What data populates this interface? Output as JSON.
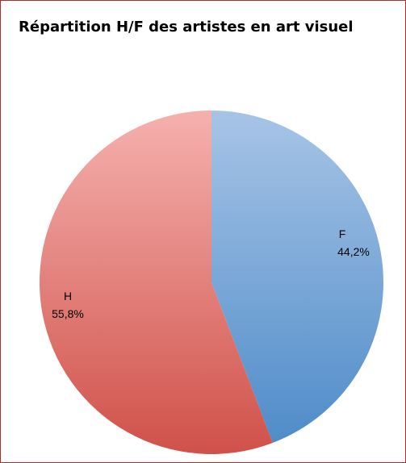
{
  "chart_data": {
    "type": "pie",
    "title": "Répartition H/F des artistes en art visuel",
    "slices": [
      {
        "label": "F",
        "value": 44.2,
        "value_text": "44,2%",
        "color_top": "#a7c4e6",
        "color_bottom": "#4f8cc9"
      },
      {
        "label": "H",
        "value": 55.8,
        "value_text": "55,8%",
        "color_top": "#f5b1ae",
        "color_bottom": "#d0514a"
      }
    ],
    "legend": "none",
    "border_color": "#b62a2a"
  }
}
